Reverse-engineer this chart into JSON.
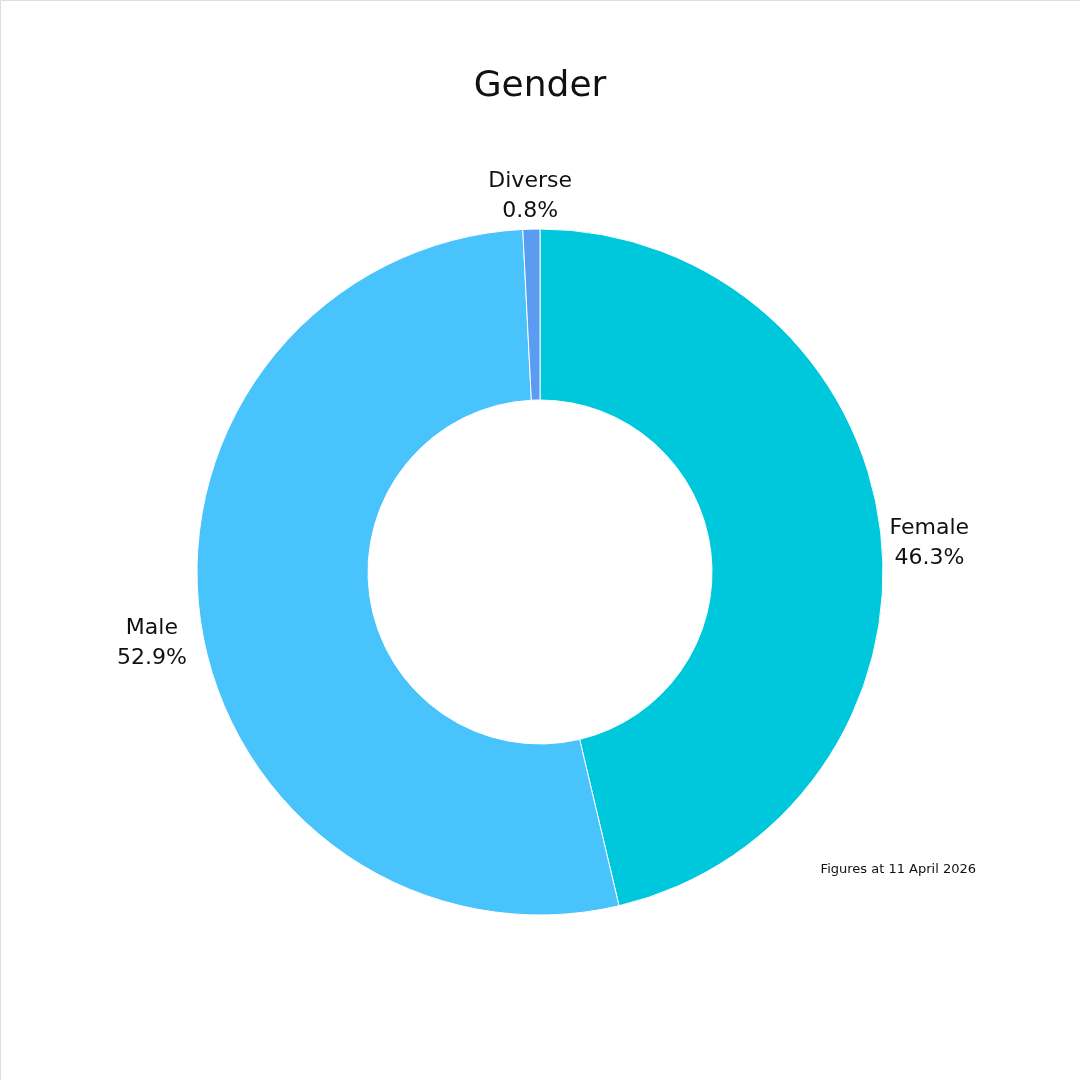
{
  "chart_data": {
    "type": "donut",
    "title": "Gender",
    "categories": [
      "Female",
      "Male",
      "Diverse"
    ],
    "values": [
      46.3,
      52.9,
      0.8
    ],
    "value_labels": [
      "46.3%",
      "52.9%",
      "0.8%"
    ],
    "colors": [
      "#00c8dc",
      "#48c3fc",
      "#5a9cf2"
    ],
    "annotations": [
      "Figures at 11 April 2026"
    ]
  }
}
